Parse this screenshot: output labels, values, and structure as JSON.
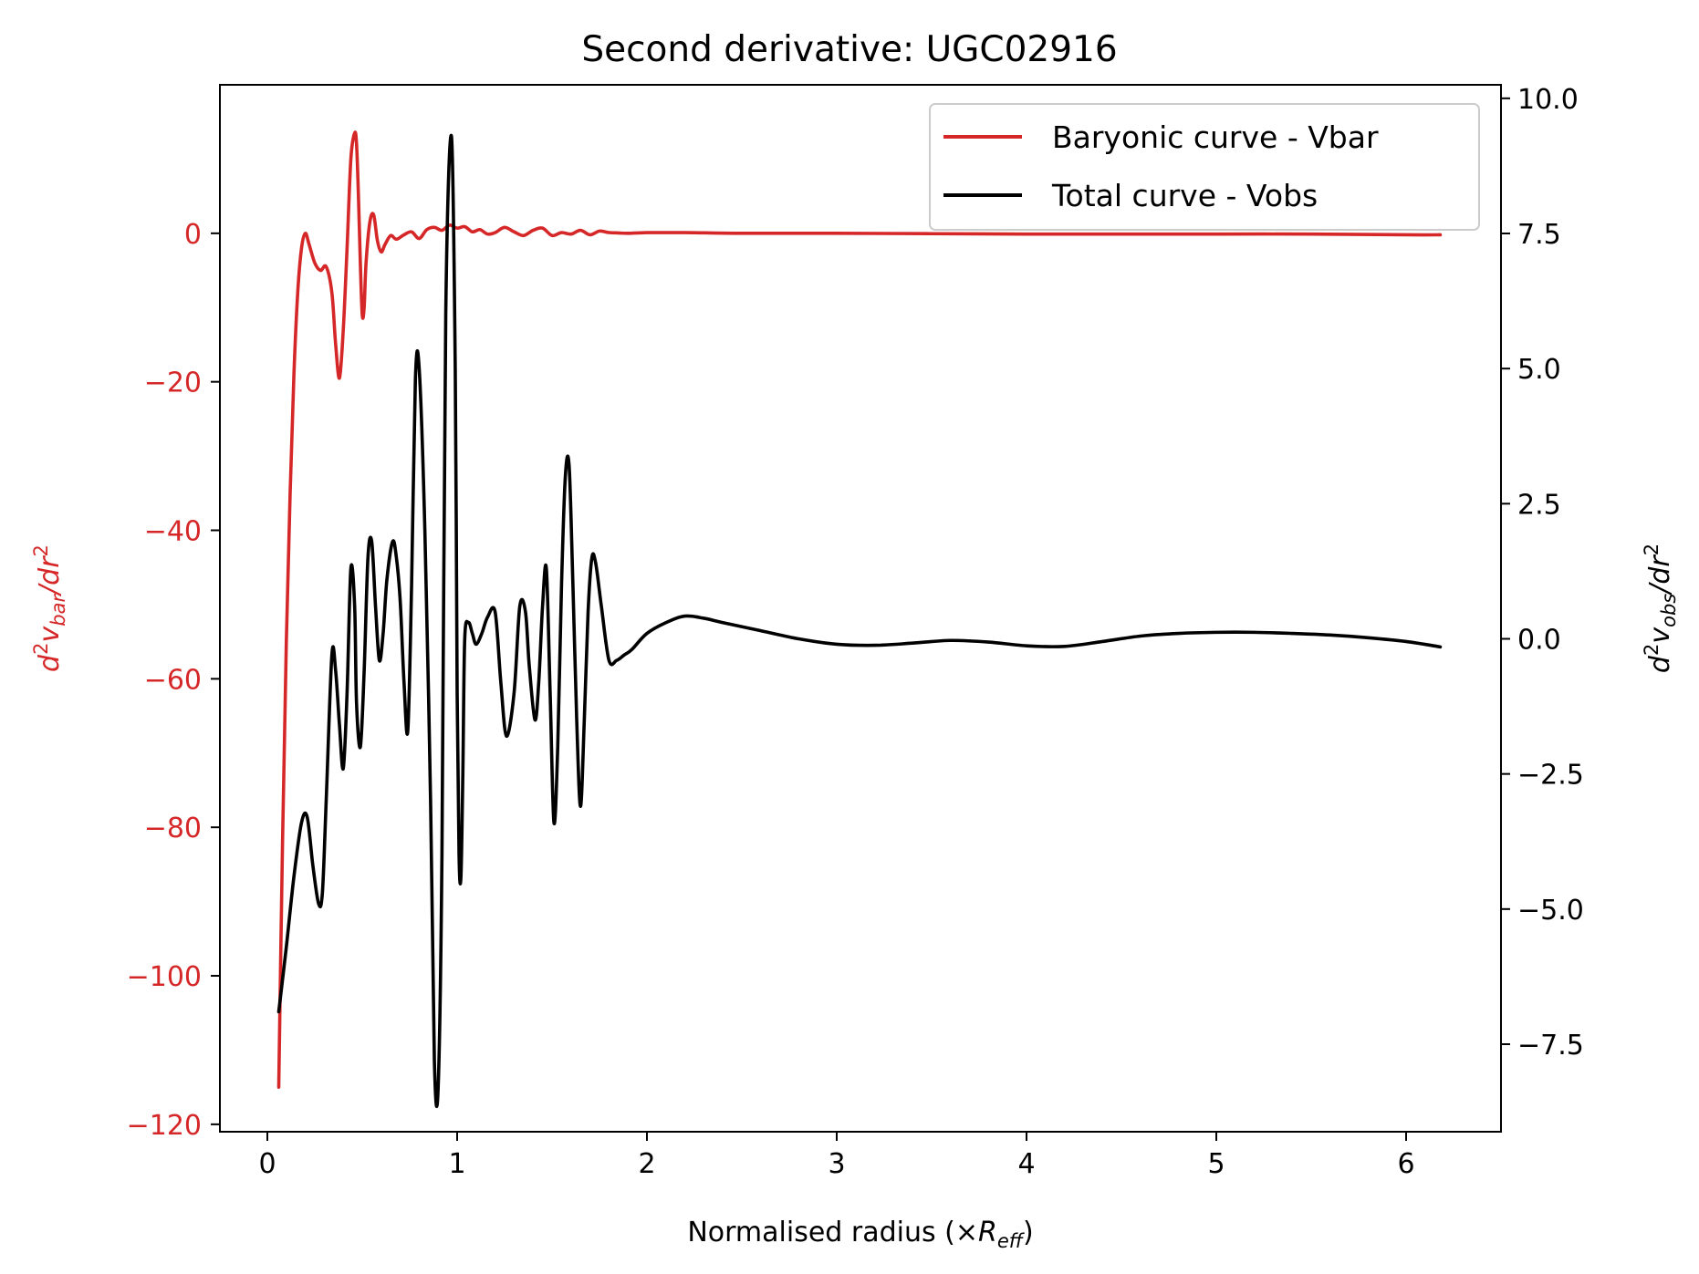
{
  "chart_data": {
    "type": "line",
    "title": "Second derivative: UGC02916",
    "xlabel": "Normalised radius (×",
    "xlabel_sub": "R",
    "xlabel_subscript": "eff",
    "xlabel_end": ")",
    "ylabel_left": "d²v_bar/dr²",
    "ylabel_right": "d²v_obs/dr²",
    "xlim": [
      -0.25,
      6.5
    ],
    "ylim_left": [
      -121,
      20
    ],
    "ylim_right": [
      -9.12,
      10.25
    ],
    "x_ticks": [
      "0",
      "1",
      "2",
      "3",
      "4",
      "5",
      "6"
    ],
    "y_ticks_left": [
      "0",
      "−20",
      "−40",
      "−60",
      "−80",
      "−100",
      "−120"
    ],
    "y_ticks_right": [
      "10.0",
      "7.5",
      "5.0",
      "2.5",
      "0.0",
      "−2.5",
      "−5.0",
      "−7.5"
    ],
    "y_ticks_left_values": [
      0,
      -20,
      -40,
      -60,
      -80,
      -100,
      -120
    ],
    "y_ticks_right_values": [
      10,
      7.5,
      5,
      2.5,
      0,
      -2.5,
      -5,
      -7.5
    ],
    "x_ticks_values": [
      0,
      1,
      2,
      3,
      4,
      5,
      6
    ],
    "legend_position": "upper right",
    "colors": {
      "baryonic": "#d62728",
      "total": "#000000"
    },
    "series": [
      {
        "name": "Baryonic curve - Vbar",
        "axis": "left",
        "x": [
          0.06,
          0.08,
          0.1,
          0.12,
          0.14,
          0.16,
          0.18,
          0.2,
          0.22,
          0.25,
          0.28,
          0.31,
          0.34,
          0.36,
          0.38,
          0.4,
          0.42,
          0.44,
          0.46,
          0.47,
          0.48,
          0.49,
          0.5,
          0.51,
          0.52,
          0.54,
          0.56,
          0.58,
          0.6,
          0.62,
          0.65,
          0.68,
          0.72,
          0.76,
          0.8,
          0.84,
          0.88,
          0.92,
          0.96,
          1.0,
          1.04,
          1.08,
          1.12,
          1.16,
          1.2,
          1.25,
          1.3,
          1.35,
          1.4,
          1.45,
          1.5,
          1.55,
          1.6,
          1.65,
          1.7,
          1.75,
          1.8,
          1.85,
          1.9,
          2.0,
          2.2,
          2.5,
          3.0,
          3.5,
          4.0,
          4.5,
          5.0,
          5.5,
          6.0,
          6.18
        ],
        "y": [
          -115,
          -82,
          -55,
          -35,
          -19,
          -8,
          -2,
          0,
          -1.5,
          -4,
          -5,
          -4.5,
          -8,
          -15,
          -19.5,
          -13,
          -2,
          10,
          13.5,
          12,
          5,
          -4,
          -11,
          -10,
          -4,
          1.5,
          2.5,
          -1,
          -2.5,
          -1.5,
          -0.3,
          -0.8,
          -0.2,
          0.2,
          -0.7,
          0.5,
          0.8,
          0.4,
          1.1,
          0.7,
          0.9,
          0.2,
          0.5,
          -0.1,
          0.1,
          0.8,
          0.2,
          -0.3,
          0.4,
          0.7,
          -0.3,
          0.1,
          -0.1,
          0.4,
          -0.2,
          0.3,
          0.1,
          0.05,
          0.0,
          0.1,
          0.1,
          0.0,
          0.0,
          -0.05,
          -0.1,
          -0.1,
          -0.1,
          -0.1,
          -0.2,
          -0.2
        ]
      },
      {
        "name": "Total curve - Vobs",
        "axis": "right",
        "x": [
          0.06,
          0.1,
          0.14,
          0.18,
          0.21,
          0.24,
          0.27,
          0.29,
          0.31,
          0.34,
          0.36,
          0.38,
          0.4,
          0.42,
          0.44,
          0.46,
          0.47,
          0.49,
          0.51,
          0.53,
          0.55,
          0.57,
          0.59,
          0.61,
          0.63,
          0.66,
          0.68,
          0.7,
          0.72,
          0.74,
          0.76,
          0.78,
          0.8,
          0.83,
          0.86,
          0.88,
          0.9,
          0.92,
          0.94,
          0.97,
          0.99,
          1.0,
          1.01,
          1.02,
          1.03,
          1.04,
          1.06,
          1.08,
          1.1,
          1.13,
          1.16,
          1.2,
          1.23,
          1.26,
          1.3,
          1.33,
          1.36,
          1.38,
          1.41,
          1.43,
          1.45,
          1.47,
          1.49,
          1.51,
          1.53,
          1.55,
          1.57,
          1.59,
          1.61,
          1.63,
          1.65,
          1.67,
          1.69,
          1.71,
          1.73,
          1.76,
          1.8,
          1.84,
          1.88,
          1.92,
          2.0,
          2.1,
          2.2,
          2.3,
          2.4,
          2.6,
          2.8,
          3.0,
          3.2,
          3.4,
          3.6,
          3.8,
          4.0,
          4.2,
          4.4,
          4.6,
          4.8,
          5.0,
          5.2,
          5.4,
          5.6,
          5.8,
          6.0,
          6.18
        ],
        "y": [
          -6.9,
          -5.7,
          -4.4,
          -3.4,
          -3.3,
          -4.2,
          -4.9,
          -4.7,
          -3.0,
          -0.3,
          -0.6,
          -1.6,
          -2.4,
          -1.0,
          1.3,
          0.6,
          -1.2,
          -2.0,
          -0.6,
          1.5,
          1.8,
          0.6,
          -0.4,
          0.1,
          1.1,
          1.8,
          1.5,
          0.7,
          -0.8,
          -1.7,
          1.0,
          4.8,
          5.0,
          2.0,
          -3.0,
          -7.8,
          -8.3,
          -4.0,
          6.0,
          9.3,
          5.0,
          -1.0,
          -4.0,
          -4.4,
          -2.5,
          0.0,
          0.3,
          0.1,
          -0.1,
          0.1,
          0.4,
          0.5,
          -0.8,
          -1.8,
          -1.0,
          0.6,
          0.5,
          -0.5,
          -1.5,
          -0.8,
          0.6,
          1.3,
          -1.0,
          -3.4,
          -2.0,
          1.0,
          3.0,
          3.2,
          1.0,
          -1.5,
          -3.1,
          -1.5,
          0.5,
          1.5,
          1.4,
          0.6,
          -0.4,
          -0.4,
          -0.3,
          -0.2,
          0.1,
          0.3,
          0.42,
          0.38,
          0.3,
          0.15,
          0.0,
          -0.1,
          -0.12,
          -0.08,
          -0.03,
          -0.06,
          -0.13,
          -0.14,
          -0.05,
          0.05,
          0.1,
          0.12,
          0.12,
          0.1,
          0.07,
          0.02,
          -0.05,
          -0.15
        ]
      }
    ]
  }
}
